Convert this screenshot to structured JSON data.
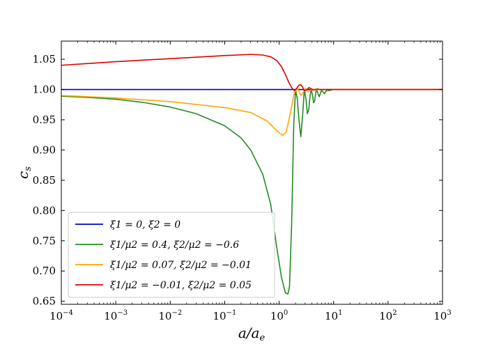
{
  "chart_data": {
    "type": "line",
    "title": "",
    "xlabel": "a/a_e",
    "ylabel": "c_s",
    "xscale": "log",
    "xlim": [
      0.0001,
      1000
    ],
    "ylim": [
      0.645,
      1.08
    ],
    "xticks": [
      {
        "value": 0.0001,
        "base": "10",
        "exp": "−4"
      },
      {
        "value": 0.001,
        "base": "10",
        "exp": "−3"
      },
      {
        "value": 0.01,
        "base": "10",
        "exp": "−2"
      },
      {
        "value": 0.1,
        "base": "10",
        "exp": "−1"
      },
      {
        "value": 1,
        "base": "10",
        "exp": "0"
      },
      {
        "value": 10,
        "base": "10",
        "exp": "1"
      },
      {
        "value": 100,
        "base": "10",
        "exp": "2"
      },
      {
        "value": 1000,
        "base": "10",
        "exp": "3"
      }
    ],
    "yticks": [
      {
        "value": 0.65,
        "label": "0.65"
      },
      {
        "value": 0.7,
        "label": "0.70"
      },
      {
        "value": 0.75,
        "label": "0.75"
      },
      {
        "value": 0.8,
        "label": "0.80"
      },
      {
        "value": 0.85,
        "label": "0.85"
      },
      {
        "value": 0.9,
        "label": "0.90"
      },
      {
        "value": 0.95,
        "label": "0.95"
      },
      {
        "value": 1.0,
        "label": "1.00"
      },
      {
        "value": 1.05,
        "label": "1.05"
      }
    ],
    "grid": false,
    "legend_position": "lower-left",
    "series": [
      {
        "name": "ξ1 = 0, ξ2 = 0",
        "color": "#0000cc",
        "x": [
          0.0001,
          1000
        ],
        "y": [
          1.0,
          1.0
        ]
      },
      {
        "name": "ξ1/μ2 = 0.4, ξ2/μ2 = −0.6",
        "color": "#228b22",
        "x": [
          0.0001,
          0.0003,
          0.001,
          0.003,
          0.01,
          0.03,
          0.1,
          0.2,
          0.3,
          0.5,
          0.7,
          0.9,
          1.1,
          1.3,
          1.45,
          1.55,
          1.7,
          1.85,
          2.0,
          2.15,
          2.3,
          2.5,
          2.7,
          2.9,
          3.1,
          3.3,
          3.5,
          3.7,
          3.9,
          4.1,
          4.3,
          4.5,
          4.7,
          4.9,
          5.1,
          5.4,
          5.7,
          6.0,
          6.4,
          6.8,
          7.2,
          7.7,
          8.2,
          9.0,
          10,
          12,
          15,
          20,
          50,
          100,
          1000
        ],
        "y": [
          0.989,
          0.987,
          0.984,
          0.979,
          0.971,
          0.96,
          0.94,
          0.92,
          0.9,
          0.86,
          0.81,
          0.74,
          0.69,
          0.664,
          0.662,
          0.675,
          0.78,
          0.94,
          1.0,
          0.985,
          0.952,
          0.922,
          0.958,
          1.0,
          0.985,
          0.96,
          0.967,
          0.99,
          1.0,
          0.99,
          0.978,
          0.982,
          0.995,
          1.0,
          0.995,
          0.988,
          0.993,
          0.999,
          0.996,
          0.993,
          0.997,
          0.999,
          0.998,
          0.999,
          1.0,
          1.0,
          1.0,
          1.0,
          1.0,
          1.0,
          1.0
        ]
      },
      {
        "name": "ξ1/μ2 = 0.07, ξ2/μ2 = −0.01",
        "color": "#ffa500",
        "x": [
          0.0001,
          0.001,
          0.01,
          0.1,
          0.3,
          0.6,
          0.9,
          1.15,
          1.35,
          1.6,
          1.9,
          2.2,
          2.5,
          2.8,
          3.1,
          3.4,
          3.8,
          4.2,
          4.6,
          5.0,
          5.5,
          6.0,
          7.0,
          8.0,
          10,
          15,
          100,
          1000
        ],
        "y": [
          0.99,
          0.986,
          0.98,
          0.97,
          0.962,
          0.948,
          0.932,
          0.924,
          0.93,
          0.96,
          0.995,
          1.002,
          0.99,
          0.996,
          1.002,
          0.996,
          0.999,
          1.001,
          0.999,
          1.0,
          1.0,
          1.0,
          1.0,
          1.0,
          1.0,
          1.0,
          1.0,
          1.0
        ]
      },
      {
        "name": "ξ1/μ2 = −0.01, ξ2/μ2 = 0.05",
        "color": "#dd0000",
        "x": [
          0.0001,
          0.001,
          0.01,
          0.1,
          0.3,
          0.5,
          0.7,
          0.9,
          1.1,
          1.3,
          1.5,
          1.7,
          1.9,
          2.1,
          2.3,
          2.5,
          2.7,
          2.9,
          3.2,
          3.5,
          3.8,
          4.2,
          4.6,
          5.0,
          5.5,
          6.0,
          7.0,
          8.0,
          10,
          100,
          1000
        ],
        "y": [
          1.04,
          1.046,
          1.051,
          1.056,
          1.058,
          1.057,
          1.054,
          1.048,
          1.038,
          1.025,
          1.012,
          1.003,
          0.998,
          1.002,
          1.007,
          1.008,
          1.004,
          0.998,
          0.999,
          1.003,
          1.002,
          0.999,
          1.0,
          1.001,
          1.0,
          1.0,
          1.0,
          1.0,
          1.0,
          1.0,
          1.0
        ]
      }
    ]
  }
}
